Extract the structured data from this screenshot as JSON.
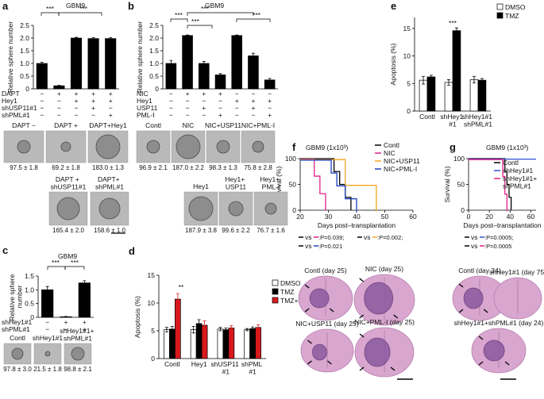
{
  "chart_data": [
    {
      "type": "bar",
      "panel_label": "a",
      "title": "GBM9",
      "y_label": "Relative sphere number",
      "ylim": [
        0,
        2.5
      ],
      "yticks": [
        0,
        0.5,
        {
          "value": 1,
          "label": "1.0"
        },
        1.5,
        {
          "value": 2,
          "label": "2.0"
        },
        2.5
      ],
      "color": "#000000",
      "values": [
        1.0,
        0.12,
        2.0,
        1.98,
        1.98
      ],
      "errors": [
        0.05,
        0.02,
        0.03,
        0.04,
        0.04
      ],
      "conditions": [
        {
          "name": "DAPT",
          "signs": [
            "−",
            "+",
            "+",
            "+",
            "+"
          ]
        },
        {
          "name": "Hey1",
          "signs": [
            "−",
            "−",
            "+",
            "+",
            "+"
          ]
        },
        {
          "name": "shUSP11#1",
          "signs": [
            "−",
            "−",
            "−",
            "+",
            "−"
          ]
        },
        {
          "name": "shPML#1",
          "signs": [
            "−",
            "−",
            "−",
            "−",
            "+"
          ]
        }
      ],
      "annotations": [
        "***",
        "***"
      ]
    },
    {
      "type": "bar",
      "panel_label": "b",
      "title": "GBM9",
      "y_label": "Relative sphere number",
      "ylim": [
        0,
        2.5
      ],
      "yticks": [
        0,
        0.5,
        {
          "value": 1,
          "label": "1.0"
        },
        1.5,
        {
          "value": 2,
          "label": "2.0"
        },
        2.5
      ],
      "color": "#000000",
      "values": [
        1.0,
        2.1,
        1.0,
        0.55,
        2.1,
        1.3,
        0.35
      ],
      "errors": [
        0.12,
        0.02,
        0.08,
        0.05,
        0.02,
        0.1,
        0.06
      ],
      "conditions": [
        {
          "name": "NIC",
          "signs": [
            "−",
            "+",
            "+",
            "+",
            "−",
            "−",
            "−"
          ]
        },
        {
          "name": "Hey1",
          "signs": [
            "−",
            "−",
            "−",
            "−",
            "+",
            "+",
            "+"
          ]
        },
        {
          "name": "USP11",
          "signs": [
            "−",
            "−",
            "+",
            "−",
            "−",
            "+",
            "−"
          ]
        },
        {
          "name": "PML-I",
          "signs": [
            "−",
            "−",
            "−",
            "+",
            "−",
            "−",
            "+"
          ]
        }
      ],
      "annotations": [
        "***",
        "***",
        "***",
        "***"
      ]
    },
    {
      "type": "bar",
      "panel_label": "c",
      "title": "GBM9",
      "y_label": "Relative sphere\nnumber",
      "ylim": [
        0,
        1.5
      ],
      "yticks": [
        0,
        0.5,
        {
          "value": 1,
          "label": "1.0"
        },
        1.5
      ],
      "color": "#000000",
      "values": [
        1.0,
        0.02,
        1.25
      ],
      "errors": [
        0.12,
        0.01,
        0.08
      ],
      "conditions": [
        {
          "name": "shHey1#1",
          "signs": [
            "−",
            "+",
            "+"
          ]
        },
        {
          "name": "shPML#1",
          "signs": [
            "−",
            "−",
            "+"
          ]
        }
      ],
      "annotations": [
        "***",
        "***"
      ]
    },
    {
      "type": "bar",
      "panel_label": "d",
      "y_label": "Apoptosis (%)",
      "ylim": [
        0,
        15
      ],
      "yticks": [
        0,
        5,
        10,
        15
      ],
      "categories": [
        "Contl",
        "Hey1",
        "shUSP11\n#1",
        "shPML\n#1"
      ],
      "series": [
        {
          "name": "DMSO",
          "color": "#ffffff",
          "values": [
            5.2,
            5.2,
            5.3,
            5.2
          ],
          "errors": [
            0.4,
            0.6,
            0.3,
            0.2
          ]
        },
        {
          "name": "TMZ",
          "color": "#000000",
          "values": [
            5.3,
            6.3,
            5.2,
            5.4
          ],
          "errors": [
            0.5,
            0.7,
            0.3,
            0.3
          ]
        },
        {
          "name": "TMZ+DAPT",
          "color": "#d7191c",
          "values": [
            10.7,
            6.0,
            5.5,
            5.6
          ],
          "errors": [
            1.0,
            0.8,
            0.4,
            0.5
          ]
        }
      ],
      "annotations": [
        "**"
      ]
    },
    {
      "type": "bar",
      "panel_label": "e",
      "y_label": "Apoptosis (%)",
      "ylim": [
        0,
        17
      ],
      "yticks": [
        0,
        5,
        10,
        15
      ],
      "categories": [
        "Contl",
        "shHey1\n#1",
        "shHey1#1\nshPML#1"
      ],
      "series": [
        {
          "name": "DMSO",
          "color": "#ffffff",
          "values": [
            5.6,
            5.2,
            5.7
          ],
          "errors": [
            0.7,
            0.5,
            0.6
          ]
        },
        {
          "name": "TMZ",
          "color": "#000000",
          "values": [
            6.2,
            14.6,
            5.6
          ],
          "errors": [
            0.3,
            0.5,
            0.3
          ]
        }
      ],
      "annotations": [
        "***"
      ]
    },
    {
      "type": "survival",
      "panel_label": "f",
      "title": "GBM9 (1x10³)",
      "y_label": "Survival (%)",
      "x_label": "Days post–transplantation",
      "xlim": [
        20,
        60
      ],
      "xticks": [
        20,
        30,
        40,
        50,
        60
      ],
      "ylim": [
        0,
        100
      ],
      "yticks": [
        0,
        50,
        100
      ],
      "series": [
        {
          "name": "Contl",
          "color": "#000000",
          "x": [
            20,
            32,
            32,
            34,
            34,
            36,
            36,
            38,
            38
          ],
          "values": [
            100,
            100,
            75,
            75,
            50,
            50,
            25,
            25,
            0
          ]
        },
        {
          "name": "NIC",
          "color": "#e0218a",
          "x": [
            20,
            25,
            25,
            27,
            27,
            29,
            29
          ],
          "values": [
            100,
            100,
            67,
            67,
            33,
            33,
            0
          ]
        },
        {
          "name": "NIC+USP11",
          "color": "#f5a623",
          "x": [
            20,
            36,
            36,
            47,
            47
          ],
          "values": [
            100,
            100,
            50,
            50,
            0
          ]
        },
        {
          "name": "NIC+PML-I",
          "color": "#1f3fbf",
          "x": [
            20,
            31,
            31,
            33,
            33,
            36,
            36,
            40,
            40
          ],
          "values": [
            100,
            100,
            75,
            75,
            50,
            50,
            25,
            25,
            0
          ]
        }
      ],
      "stats": [
        {
          "text": "vs",
          "p": ":P=0.039;",
          "colors": [
            "#000000",
            "#e0218a"
          ]
        },
        {
          "text": "vs",
          "p": ":P=0.002;",
          "colors": [
            "#000000",
            "#f5a623"
          ]
        },
        {
          "text": "vs",
          "p": ":P=0.021",
          "colors": [
            "#000000",
            "#1f3fbf"
          ]
        }
      ]
    },
    {
      "type": "survival",
      "panel_label": "g",
      "title": "GBM9 (1x10³)",
      "y_label": "Survival (%)",
      "x_label": "Days post–transplantation",
      "xlim": [
        0,
        65
      ],
      "xticks": [
        0,
        20,
        40,
        60
      ],
      "ylim": [
        0,
        100
      ],
      "yticks": [
        0,
        50,
        100
      ],
      "series": [
        {
          "name": "Contl",
          "color": "#000000",
          "x": [
            0,
            35,
            35,
            37,
            37,
            39,
            39,
            41,
            41
          ],
          "values": [
            100,
            100,
            75,
            75,
            50,
            50,
            25,
            25,
            0
          ]
        },
        {
          "name": "shHey1#1",
          "color": "#3050d0",
          "x": [
            0,
            65
          ],
          "values": [
            100,
            100
          ]
        },
        {
          "name": "shHey1#1+\nshPML#1",
          "color": "#e0218a",
          "x": [
            0,
            33,
            33,
            35,
            35,
            37,
            37
          ],
          "values": [
            100,
            100,
            67,
            67,
            33,
            33,
            0
          ]
        }
      ],
      "stats": [
        {
          "text": "vs",
          "p": ":P=0.0005;",
          "colors": [
            "#000000",
            "#3050d0"
          ]
        },
        {
          "text": "vs",
          "p": ":P=0.0005",
          "colors": [
            "#000000",
            "#e0218a"
          ]
        }
      ]
    }
  ],
  "micrographs": {
    "a": [
      {
        "label": "DAPT −",
        "value": "97.5 ± 1.8"
      },
      {
        "label": "DAPT +",
        "value": "69.2 ± 1.8"
      },
      {
        "label": "DAPT+Hey1",
        "value": "183.0 ± 1.3"
      },
      {
        "label": "DAPT +\nshUSP11#1",
        "value": "165.4 ± 2.0"
      },
      {
        "label": "DAPT+\nshPML#1",
        "value": "158.6 ± 1.0"
      }
    ],
    "b": [
      {
        "label": "Contl",
        "value": "96.9 ± 2.1"
      },
      {
        "label": "NIC",
        "value": "187.0 ± 2.2"
      },
      {
        "label": "NIC+USP11",
        "value": "98.3 ± 1.3"
      },
      {
        "label": "NIC+PML-I",
        "value": "75.8 ± 2.8"
      },
      {
        "label": "Hey1",
        "value": "187.9 ± 3.8"
      },
      {
        "label": "Hey1+\nUSP11",
        "value": "99.6 ± 2.2"
      },
      {
        "label": "Hey1+\nPML-I",
        "value": "76.7 ± 1.6"
      }
    ],
    "c": [
      {
        "label": "Contl",
        "value": "97.8 ± 3.0"
      },
      {
        "label": "shHey1#1",
        "value": "21.5 ± 1.8"
      },
      {
        "label": "shHey1#1+\nshPML#1",
        "value": "98.8 ± 2.1"
      }
    ]
  },
  "brain_sections": {
    "f": [
      {
        "label": "Contl (day 25)"
      },
      {
        "label": "NIC (day 25)"
      },
      {
        "label": "NIC+USP11 (day 25)"
      },
      {
        "label": "NIC+PML-I (day 25)"
      }
    ],
    "g": [
      {
        "label": "Contl (day 24)"
      },
      {
        "label": "shHey1#1 (day 75)"
      },
      {
        "label": "shHey1#1+shPML#1 (day 24)"
      }
    ]
  }
}
